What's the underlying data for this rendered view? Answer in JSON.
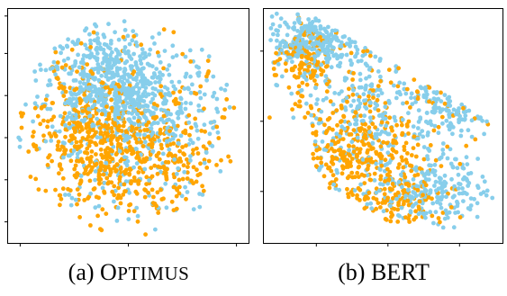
{
  "chart_data": [
    {
      "type": "scatter",
      "caption_prefix": "(a) ",
      "caption_name": "Optimus",
      "xlim": [
        0,
        1
      ],
      "ylim": [
        0,
        1
      ],
      "grid": false,
      "legend": "none",
      "series": [
        {
          "color": "#87CEEB",
          "points": 900,
          "clusters": [
            {
              "cx": 0.44,
              "cy": 0.66,
              "sx": 0.11,
              "sy": 0.1,
              "w": 0.35
            },
            {
              "cx": 0.6,
              "cy": 0.6,
              "sx": 0.14,
              "sy": 0.12,
              "w": 0.2
            },
            {
              "cx": 0.33,
              "cy": 0.78,
              "sx": 0.13,
              "sy": 0.09,
              "w": 0.15
            },
            {
              "cx": 0.5,
              "cy": 0.45,
              "sx": 0.25,
              "sy": 0.22,
              "w": 0.3
            }
          ]
        },
        {
          "color": "#FFA500",
          "points": 750,
          "clusters": [
            {
              "cx": 0.4,
              "cy": 0.38,
              "sx": 0.13,
              "sy": 0.11,
              "w": 0.35
            },
            {
              "cx": 0.62,
              "cy": 0.4,
              "sx": 0.14,
              "sy": 0.13,
              "w": 0.25
            },
            {
              "cx": 0.28,
              "cy": 0.55,
              "sx": 0.1,
              "sy": 0.12,
              "w": 0.15
            },
            {
              "cx": 0.5,
              "cy": 0.5,
              "sx": 0.25,
              "sy": 0.25,
              "w": 0.25
            }
          ]
        }
      ]
    },
    {
      "type": "scatter",
      "caption_prefix": "(b) ",
      "caption_name": "BERT",
      "xlim": [
        0,
        1
      ],
      "ylim": [
        0,
        1
      ],
      "grid": false,
      "legend": "none",
      "series": [
        {
          "color": "#87CEEB",
          "points": 850,
          "clusters": [
            {
              "cx": 0.22,
              "cy": 0.88,
              "sx": 0.1,
              "sy": 0.06,
              "w": 0.3
            },
            {
              "cx": 0.8,
              "cy": 0.6,
              "sx": 0.08,
              "sy": 0.06,
              "w": 0.15
            },
            {
              "cx": 0.72,
              "cy": 0.22,
              "sx": 0.12,
              "sy": 0.07,
              "w": 0.2
            },
            {
              "cx": 0.45,
              "cy": 0.55,
              "sx": 0.22,
              "sy": 0.22,
              "w": 0.35
            }
          ]
        },
        {
          "color": "#FFA500",
          "points": 600,
          "clusters": [
            {
              "cx": 0.38,
              "cy": 0.4,
              "sx": 0.12,
              "sy": 0.09,
              "w": 0.35
            },
            {
              "cx": 0.18,
              "cy": 0.78,
              "sx": 0.06,
              "sy": 0.08,
              "w": 0.15
            },
            {
              "cx": 0.55,
              "cy": 0.18,
              "sx": 0.12,
              "sy": 0.06,
              "w": 0.2
            },
            {
              "cx": 0.45,
              "cy": 0.5,
              "sx": 0.2,
              "sy": 0.2,
              "w": 0.3
            }
          ]
        }
      ]
    }
  ]
}
